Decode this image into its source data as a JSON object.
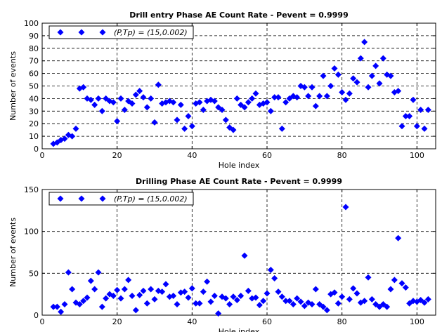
{
  "chart_data": [
    {
      "type": "scatter",
      "title": "Drill entry Phase AE Count Rate - Pevent = 0.9999",
      "xlabel": "Hole index",
      "ylabel": "Number of events",
      "xlim": [
        0,
        105
      ],
      "ylim": [
        0,
        100
      ],
      "xticks": [
        0,
        20,
        40,
        60,
        80,
        100
      ],
      "yticks": [
        0,
        10,
        20,
        30,
        40,
        50,
        60,
        70,
        80,
        90,
        100
      ],
      "grid": true,
      "legend_position": "top-left",
      "marker": "diamond",
      "color": "#0000ff",
      "series": [
        {
          "name": "(P,Tp) = (15,0.002)",
          "x": [
            3,
            4,
            5,
            6,
            7,
            8,
            9,
            10,
            11,
            12,
            13,
            14,
            15,
            16,
            17,
            18,
            19,
            20,
            21,
            22,
            23,
            24,
            25,
            26,
            27,
            28,
            29,
            30,
            31,
            32,
            33,
            34,
            35,
            36,
            37,
            38,
            39,
            40,
            41,
            42,
            43,
            44,
            45,
            46,
            47,
            48,
            49,
            50,
            51,
            52,
            53,
            54,
            55,
            56,
            57,
            58,
            59,
            60,
            61,
            62,
            63,
            64,
            65,
            66,
            67,
            68,
            69,
            70,
            71,
            72,
            73,
            74,
            75,
            76,
            77,
            78,
            79,
            80,
            81,
            82,
            83,
            84,
            85,
            86,
            87,
            88,
            89,
            90,
            91,
            92,
            93,
            94,
            95,
            96,
            97,
            98,
            99,
            100,
            101,
            102,
            103
          ],
          "y": [
            4,
            5,
            7,
            8,
            11,
            10,
            16,
            48,
            49,
            40,
            39,
            35,
            40,
            30,
            40,
            38,
            37,
            22,
            40,
            31,
            38,
            36,
            43,
            46,
            41,
            33,
            40,
            21,
            51,
            36,
            37,
            38,
            37,
            23,
            35,
            16,
            26,
            18,
            36,
            37,
            31,
            38,
            39,
            38,
            33,
            31,
            23,
            17,
            15,
            40,
            35,
            33,
            37,
            40,
            44,
            35,
            36,
            37,
            30,
            41,
            41,
            16,
            37,
            40,
            42,
            41,
            50,
            49,
            42,
            49,
            34,
            42,
            58,
            42,
            50,
            64,
            59,
            45,
            39,
            44,
            56,
            53,
            72,
            85,
            49,
            58,
            66,
            52,
            72,
            59,
            58,
            45,
            46,
            18,
            26,
            26,
            39,
            18,
            31,
            16,
            31
          ]
        }
      ]
    },
    {
      "type": "scatter",
      "title": "Drilling Phase AE Count Rate - Pevent = 0.9999",
      "xlabel": "Hole index",
      "ylabel": "Number of events",
      "xlim": [
        0,
        105
      ],
      "ylim": [
        0,
        150
      ],
      "xticks": [
        0,
        20,
        40,
        60,
        80,
        100
      ],
      "yticks": [
        0,
        50,
        100,
        150
      ],
      "grid": true,
      "legend_position": "top-left",
      "marker": "diamond",
      "color": "#0000ff",
      "series": [
        {
          "name": "(P,Tp) = (15,0.002)",
          "x": [
            3,
            4,
            5,
            6,
            7,
            8,
            9,
            10,
            11,
            12,
            13,
            14,
            15,
            16,
            17,
            18,
            19,
            20,
            21,
            22,
            23,
            24,
            25,
            26,
            27,
            28,
            29,
            30,
            31,
            32,
            33,
            34,
            35,
            36,
            37,
            38,
            39,
            40,
            41,
            42,
            43,
            44,
            45,
            46,
            47,
            48,
            49,
            50,
            51,
            52,
            53,
            54,
            55,
            56,
            57,
            58,
            59,
            60,
            61,
            62,
            63,
            64,
            65,
            66,
            67,
            68,
            69,
            70,
            71,
            72,
            73,
            74,
            75,
            76,
            77,
            78,
            79,
            80,
            81,
            82,
            83,
            84,
            85,
            86,
            87,
            88,
            89,
            90,
            91,
            92,
            93,
            94,
            95,
            96,
            97,
            98,
            99,
            100,
            101,
            102,
            103
          ],
          "y": [
            10,
            10,
            4,
            13,
            51,
            31,
            15,
            13,
            17,
            21,
            41,
            31,
            51,
            10,
            20,
            25,
            23,
            30,
            20,
            31,
            42,
            23,
            6,
            24,
            29,
            14,
            31,
            19,
            29,
            28,
            37,
            22,
            23,
            13,
            27,
            28,
            21,
            32,
            14,
            14,
            28,
            40,
            16,
            23,
            2,
            22,
            20,
            13,
            22,
            18,
            23,
            71,
            29,
            20,
            21,
            12,
            17,
            26,
            54,
            44,
            28,
            22,
            17,
            17,
            13,
            20,
            16,
            11,
            15,
            13,
            31,
            13,
            10,
            6,
            25,
            27,
            14,
            22,
            129,
            19,
            32,
            26,
            15,
            17,
            45,
            19,
            13,
            10,
            13,
            10,
            31,
            42,
            92,
            38,
            33,
            14,
            17,
            16,
            18,
            15,
            19
          ]
        }
      ]
    }
  ]
}
